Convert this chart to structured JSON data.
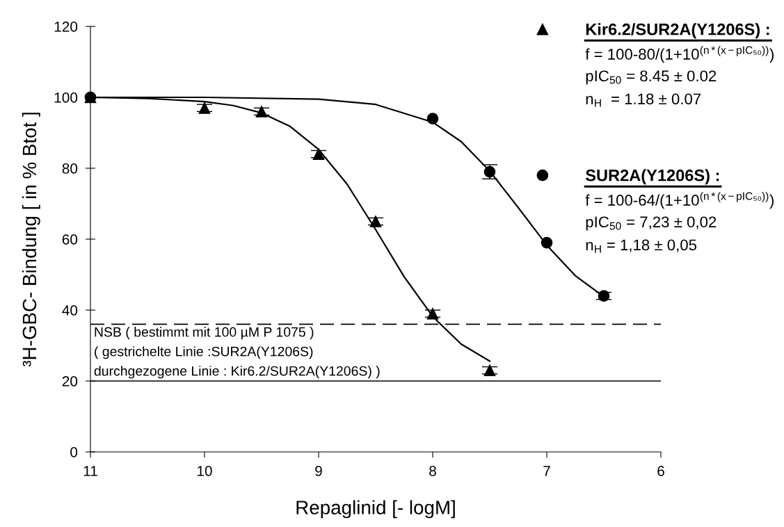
{
  "chart_data": {
    "type": "scatter",
    "xlabel": "Repaglinid [- logM]",
    "ylabel": "³H-GBC- Bindung [ in % Btot ]",
    "xlim": [
      11,
      6
    ],
    "xticks": [
      11,
      10,
      9,
      8,
      7,
      6
    ],
    "ylim": [
      0,
      120
    ],
    "yticks": [
      0,
      20,
      40,
      60,
      80,
      100,
      120
    ],
    "grid": false,
    "legend": "top right",
    "series": [
      {
        "name": "Kir6.2/SUR2A(Y1206S) :",
        "marker": "triangle",
        "color": "#000000",
        "x": [
          11,
          10,
          9.5,
          9,
          8.5,
          8,
          7.5
        ],
        "values": [
          100,
          97,
          96,
          84,
          65,
          39,
          23
        ],
        "errors": [
          null,
          1,
          1,
          1,
          1,
          1,
          1
        ]
      },
      {
        "name": "SUR2A(Y1206S) :",
        "marker": "circle",
        "color": "#000000",
        "x": [
          11,
          8,
          7.5,
          7,
          6.5
        ],
        "values": [
          100,
          94,
          79,
          59,
          44
        ],
        "errors": [
          null,
          null,
          2,
          null,
          1
        ]
      },
      {
        "type": "line",
        "color": "#000000",
        "x": [
          11,
          10.5,
          10,
          9.75,
          9.5,
          9.25,
          9,
          8.75,
          8.5,
          8.25,
          8,
          7.75,
          7.5
        ],
        "values": [
          100,
          99.7,
          98.8,
          97.7,
          95.6,
          91.8,
          85.3,
          75.5,
          62.7,
          49.4,
          38.2,
          30.4,
          25.6
        ]
      },
      {
        "type": "line",
        "color": "#000000",
        "x": [
          11,
          10,
          9,
          8.5,
          8,
          7.75,
          7.5,
          7.25,
          7,
          6.75,
          6.5
        ],
        "values": [
          100,
          100,
          99.5,
          98,
          93,
          87.5,
          79.2,
          68.9,
          58.3,
          49.7,
          43.8
        ]
      }
    ],
    "ref_lines": [
      {
        "axis": "y",
        "value": 36,
        "line_style": "dashed",
        "color": "#000000"
      },
      {
        "axis": "y",
        "value": 20,
        "line_style": "solid",
        "color": "#000000"
      }
    ],
    "annotations": [
      "f = 100-80/(1+10$^{(n*(x−pIC₅₀))}$)",
      "pIC$_{50}$ = 8.45 ± 0.02",
      "n$_{H}$  = 1.18 ± 0.07",
      "f = 100-64/(1+10$^{(n*(x−pIC₅₀))}$)",
      "pIC$_{50}$ = 7,23 ± 0,02",
      "n$_{H}$ = 1,18 ± 0,05",
      "NSB ( bestimmt mit 100 µM P 1075 )",
      "( gestrichelte Linie :SUR2A(Y1206S)",
      "durchgezogene Linie : Kir6.2/SUR2A(Y1206S) )"
    ]
  }
}
